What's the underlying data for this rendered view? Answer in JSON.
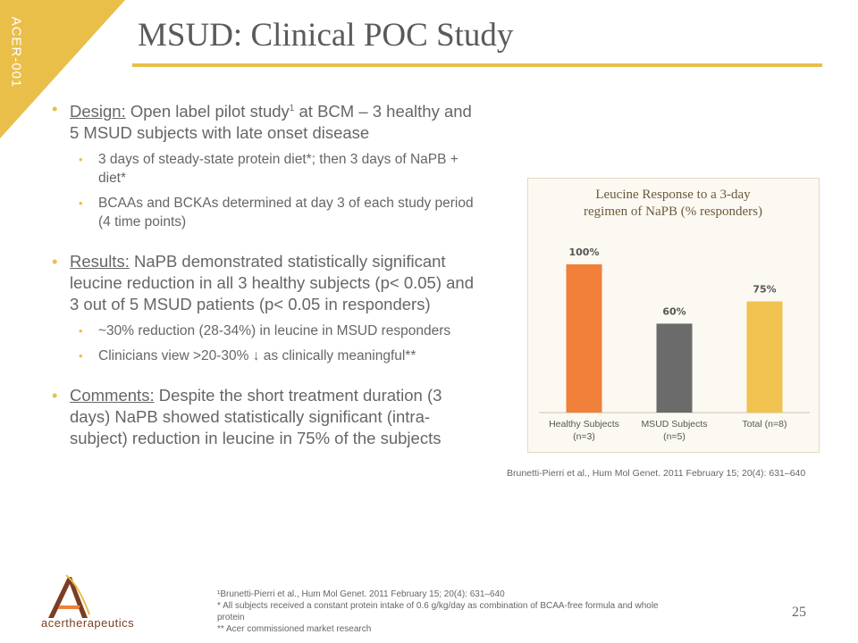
{
  "slide": {
    "corner_tag": "ACER-001",
    "title": "MSUD: Clinical POC Study",
    "page_number": "25"
  },
  "content": {
    "design": {
      "label": "Design:",
      "text_before_sup": " Open label pilot study",
      "sup": "1",
      "text_after_sup": " at BCM – 3 healthy and 5 MSUD subjects with late onset disease",
      "sub_bullets": [
        "3 days of steady-state protein diet*; then 3 days of NaPB + diet*",
        "BCAAs and BCKAs determined at day 3 of each study period (4 time points)"
      ]
    },
    "results": {
      "label": "Results:",
      "text": " NaPB demonstrated statistically significant leucine reduction in all 3 healthy subjects (p< 0.05) and 3 out of 5 MSUD patients (p< 0.05 in responders)",
      "sub_bullets": [
        "~30% reduction (28-34%) in leucine in MSUD responders",
        "Clinicians view >20-30% ↓ as clinically meaningful**"
      ]
    },
    "comments": {
      "label": "Comments:",
      "text": " Despite the short treatment duration (3 days) NaPB showed statistically significant (intra-subject) reduction in leucine in 75% of the subjects"
    }
  },
  "chart_citation": "Brunetti-Pierri et al., Hum Mol Genet. 2011 February 15; 20(4): 631–640",
  "footnotes": [
    "¹Brunetti-Pierri et al., Hum Mol Genet. 2011 February 15; 20(4): 631–640",
    "* All subjects received a constant protein intake of 0.6 g/kg/day as combination of BCAA-free formula and whole protein",
    "** Acer commissioned market research"
  ],
  "logo": {
    "text": "acertherapeutics"
  },
  "colors": {
    "accent_gold": "#e9bf4a",
    "bar_orange": "#f0803a",
    "bar_gray": "#6b6b6b",
    "bar_yellow": "#f0c24f",
    "logo_brown": "#7b3d23"
  },
  "chart_data": {
    "type": "bar",
    "title": "Leucine Response to a 3-day regimen of NaPB (% responders)",
    "title_lines": [
      "Leucine Response to a 3-day",
      "regimen of NaPB (% responders)"
    ],
    "categories": [
      "Healthy Subjects (n=3)",
      "MSUD Subjects (n=5)",
      "Total (n=8)"
    ],
    "category_lines": [
      [
        "Healthy Subjects",
        "(n=3)"
      ],
      [
        "MSUD Subjects",
        "(n=5)"
      ],
      [
        "Total (n=8)"
      ]
    ],
    "values": [
      100,
      60,
      75
    ],
    "data_labels": [
      "100%",
      "60%",
      "75%"
    ],
    "ylim": [
      0,
      100
    ],
    "xlabel": "",
    "ylabel": "",
    "grid": false,
    "legend": "none"
  }
}
